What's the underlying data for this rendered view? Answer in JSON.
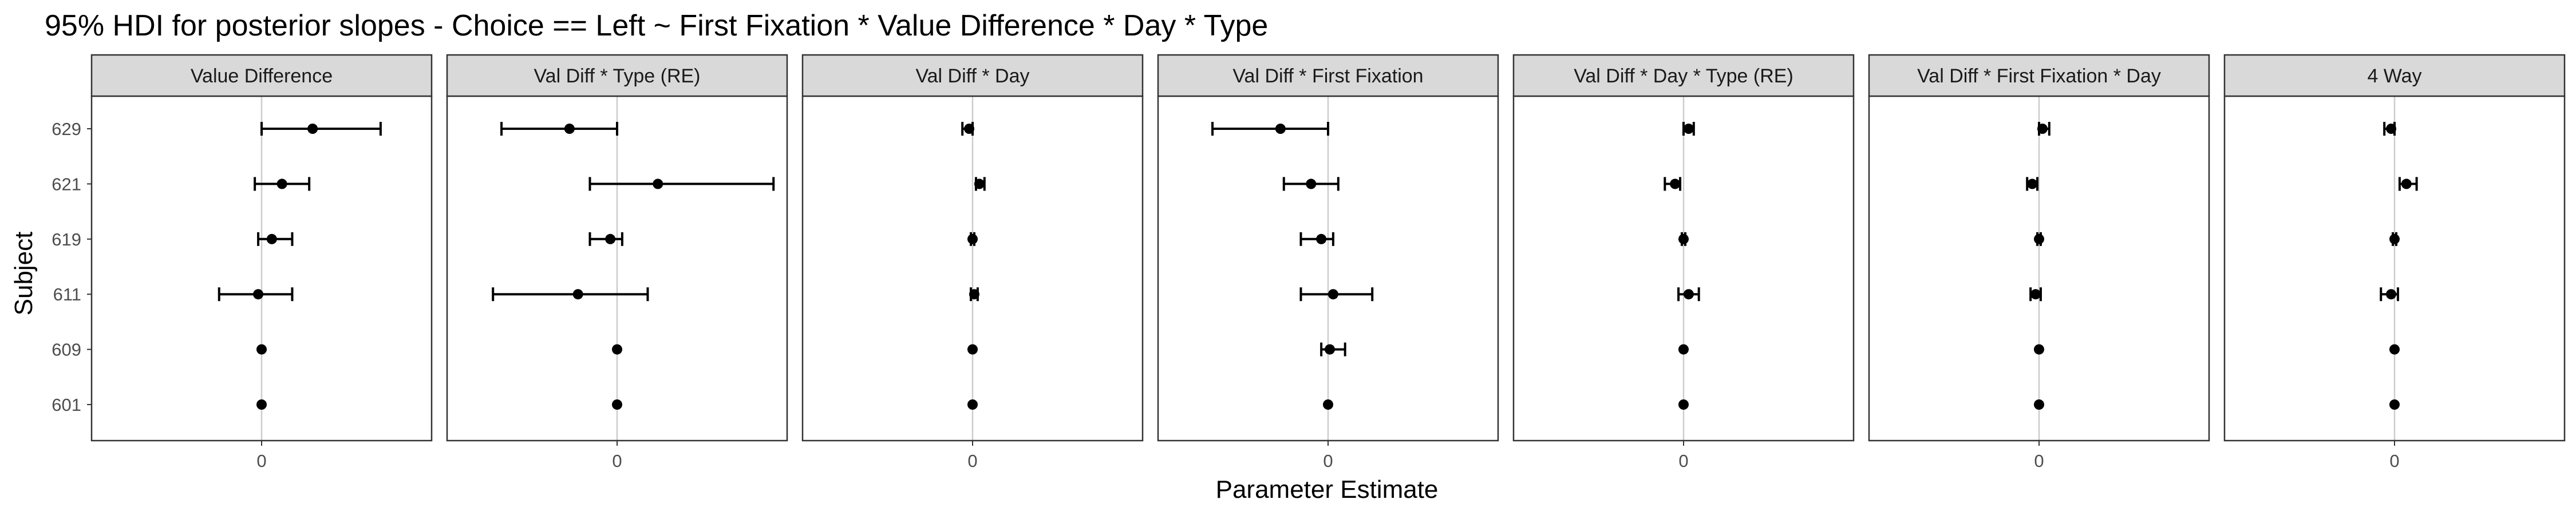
{
  "chart_data": {
    "type": "scatter",
    "variant": "faceted point-range (95% HDI intervals)",
    "title": "95% HDI for posterior slopes - Choice == Left ~ First Fixation * Value Difference * Day * Type",
    "xlabel": "Parameter Estimate",
    "ylabel": "Subject",
    "subjects": [
      "601",
      "609",
      "611",
      "619",
      "621",
      "629"
    ],
    "x_tick_labels": [
      "0"
    ],
    "x_ticks": [
      0
    ],
    "xlim": [
      -1.0,
      1.0
    ],
    "grid": true,
    "legend": "none",
    "panels": [
      {
        "label": "Value Difference",
        "points": [
          {
            "subject": "629",
            "est": 0.3,
            "lo": 0.0,
            "hi": 0.7
          },
          {
            "subject": "621",
            "est": 0.12,
            "lo": -0.04,
            "hi": 0.28
          },
          {
            "subject": "619",
            "est": 0.06,
            "lo": -0.02,
            "hi": 0.18
          },
          {
            "subject": "611",
            "est": -0.02,
            "lo": -0.25,
            "hi": 0.18
          },
          {
            "subject": "609",
            "est": 0.0,
            "lo": 0.0,
            "hi": 0.0
          },
          {
            "subject": "601",
            "est": 0.0,
            "lo": 0.0,
            "hi": 0.0
          }
        ]
      },
      {
        "label": "Val Diff * Type (RE)",
        "points": [
          {
            "subject": "629",
            "est": -0.28,
            "lo": -0.68,
            "hi": 0.0
          },
          {
            "subject": "621",
            "est": 0.24,
            "lo": -0.16,
            "hi": 0.92
          },
          {
            "subject": "619",
            "est": -0.04,
            "lo": -0.16,
            "hi": 0.03
          },
          {
            "subject": "611",
            "est": -0.23,
            "lo": -0.73,
            "hi": 0.18
          },
          {
            "subject": "609",
            "est": 0.0,
            "lo": 0.0,
            "hi": 0.0
          },
          {
            "subject": "601",
            "est": 0.0,
            "lo": 0.0,
            "hi": 0.0
          }
        ]
      },
      {
        "label": "Val Diff * Day",
        "points": [
          {
            "subject": "629",
            "est": -0.02,
            "lo": -0.06,
            "hi": 0.0
          },
          {
            "subject": "621",
            "est": 0.04,
            "lo": 0.02,
            "hi": 0.07
          },
          {
            "subject": "619",
            "est": 0.0,
            "lo": -0.01,
            "hi": 0.01
          },
          {
            "subject": "611",
            "est": 0.01,
            "lo": -0.01,
            "hi": 0.03
          },
          {
            "subject": "609",
            "est": 0.0,
            "lo": 0.0,
            "hi": 0.0
          },
          {
            "subject": "601",
            "est": 0.0,
            "lo": 0.0,
            "hi": 0.0
          }
        ]
      },
      {
        "label": "Val Diff * First Fixation",
        "points": [
          {
            "subject": "629",
            "est": -0.28,
            "lo": -0.68,
            "hi": 0.0
          },
          {
            "subject": "621",
            "est": -0.1,
            "lo": -0.26,
            "hi": 0.06
          },
          {
            "subject": "619",
            "est": -0.04,
            "lo": -0.16,
            "hi": 0.03
          },
          {
            "subject": "611",
            "est": 0.03,
            "lo": -0.16,
            "hi": 0.26
          },
          {
            "subject": "609",
            "est": 0.01,
            "lo": -0.04,
            "hi": 0.1
          },
          {
            "subject": "601",
            "est": 0.0,
            "lo": 0.0,
            "hi": 0.0
          }
        ]
      },
      {
        "label": "Val Diff * Day * Type (RE)",
        "points": [
          {
            "subject": "629",
            "est": 0.03,
            "lo": 0.0,
            "hi": 0.06
          },
          {
            "subject": "621",
            "est": -0.05,
            "lo": -0.11,
            "hi": -0.02
          },
          {
            "subject": "619",
            "est": 0.0,
            "lo": -0.01,
            "hi": 0.01
          },
          {
            "subject": "611",
            "est": 0.03,
            "lo": -0.03,
            "hi": 0.09
          },
          {
            "subject": "609",
            "est": 0.0,
            "lo": 0.0,
            "hi": 0.0
          },
          {
            "subject": "601",
            "est": 0.0,
            "lo": 0.0,
            "hi": 0.0
          }
        ]
      },
      {
        "label": "Val Diff * First Fixation * Day",
        "points": [
          {
            "subject": "629",
            "est": 0.02,
            "lo": 0.0,
            "hi": 0.06
          },
          {
            "subject": "621",
            "est": -0.04,
            "lo": -0.07,
            "hi": -0.01
          },
          {
            "subject": "619",
            "est": 0.0,
            "lo": -0.01,
            "hi": 0.01
          },
          {
            "subject": "611",
            "est": -0.02,
            "lo": -0.05,
            "hi": 0.01
          },
          {
            "subject": "609",
            "est": 0.0,
            "lo": 0.0,
            "hi": 0.0
          },
          {
            "subject": "601",
            "est": 0.0,
            "lo": 0.0,
            "hi": 0.0
          }
        ]
      },
      {
        "label": "4 Way",
        "points": [
          {
            "subject": "629",
            "est": -0.02,
            "lo": -0.06,
            "hi": 0.0
          },
          {
            "subject": "621",
            "est": 0.07,
            "lo": 0.03,
            "hi": 0.13
          },
          {
            "subject": "619",
            "est": 0.0,
            "lo": -0.01,
            "hi": 0.01
          },
          {
            "subject": "611",
            "est": -0.02,
            "lo": -0.08,
            "hi": 0.02
          },
          {
            "subject": "609",
            "est": 0.0,
            "lo": 0.0,
            "hi": 0.0
          },
          {
            "subject": "601",
            "est": 0.0,
            "lo": 0.0,
            "hi": 0.0
          }
        ]
      }
    ]
  },
  "colors": {
    "background": "#ffffff",
    "strip_fill": "#d9d9d9",
    "strip_border": "#333333",
    "panel_border": "#333333",
    "gridline": "#cccccc",
    "point": "#000000",
    "tick_label": "#4d4d4d"
  }
}
